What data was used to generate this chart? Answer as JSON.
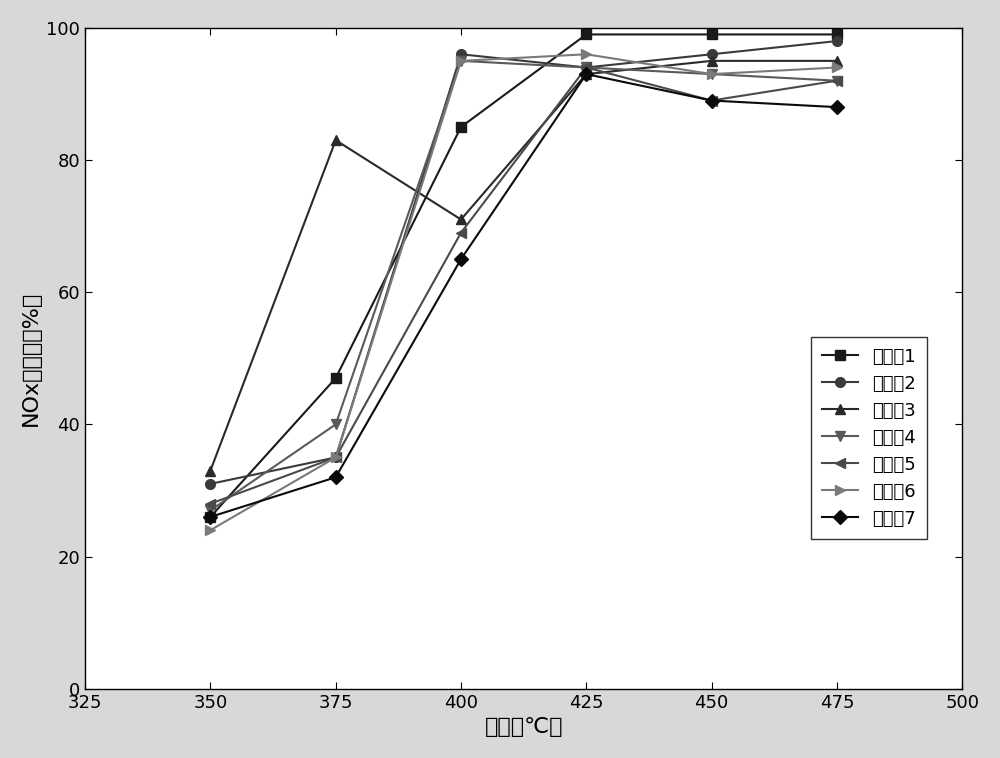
{
  "title": "",
  "xlabel": "温度（℃）",
  "ylabel": "NOx转化率（%）",
  "xlim": [
    325,
    500
  ],
  "ylim": [
    0,
    100
  ],
  "xticks": [
    325,
    350,
    375,
    400,
    425,
    450,
    475,
    500
  ],
  "yticks": [
    0,
    20,
    40,
    60,
    80,
    100
  ],
  "x_values": [
    350,
    375,
    400,
    425,
    450,
    475
  ],
  "series": [
    {
      "label": "实施例1",
      "color": "#1a1a1a",
      "marker": "s",
      "markersize": 7,
      "linewidth": 1.5,
      "y": [
        26,
        47,
        85,
        99,
        99,
        99
      ]
    },
    {
      "label": "实施例2",
      "color": "#3a3a3a",
      "marker": "o",
      "markersize": 7,
      "linewidth": 1.5,
      "y": [
        31,
        35,
        96,
        94,
        96,
        98
      ]
    },
    {
      "label": "实施例3",
      "color": "#2a2a2a",
      "marker": "^",
      "markersize": 7,
      "linewidth": 1.5,
      "y": [
        33,
        83,
        71,
        93,
        95,
        95
      ]
    },
    {
      "label": "实施例4",
      "color": "#5a5a5a",
      "marker": "v",
      "markersize": 7,
      "linewidth": 1.5,
      "y": [
        27,
        40,
        95,
        94,
        93,
        92
      ]
    },
    {
      "label": "实施例5",
      "color": "#4a4a4a",
      "marker": "<",
      "markersize": 7,
      "linewidth": 1.5,
      "y": [
        28,
        35,
        69,
        94,
        89,
        92
      ]
    },
    {
      "label": "实施例6",
      "color": "#7a7a7a",
      "marker": ">",
      "markersize": 7,
      "linewidth": 1.5,
      "y": [
        24,
        35,
        95,
        96,
        93,
        94
      ]
    },
    {
      "label": "实施例7",
      "color": "#0a0a0a",
      "marker": "D",
      "markersize": 7,
      "linewidth": 1.5,
      "y": [
        26,
        32,
        65,
        93,
        89,
        88
      ]
    }
  ],
  "font_size": 14,
  "label_font_size": 16,
  "tick_font_size": 13,
  "legend_font_size": 13,
  "fig_bg": "#d8d8d8",
  "ax_bg": "#ffffff"
}
